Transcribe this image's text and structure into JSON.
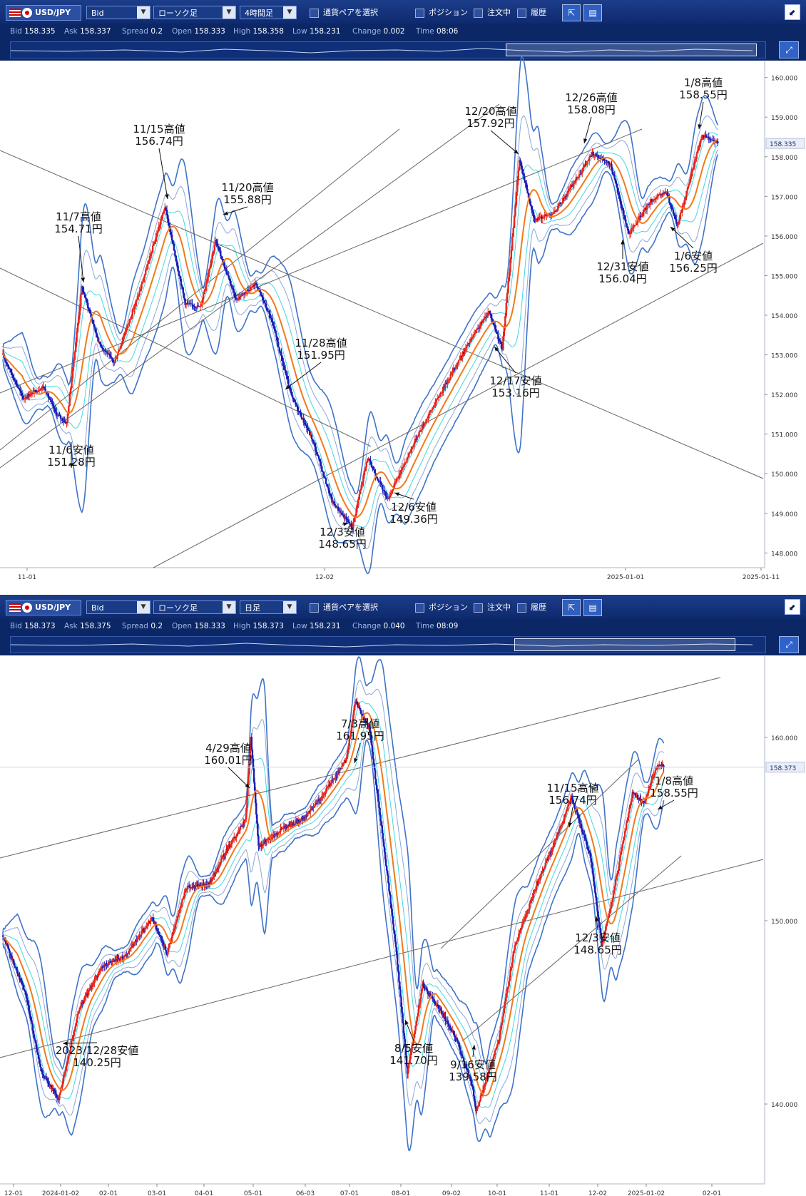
{
  "top": {
    "toolbar": {
      "pair": "USD/JPY",
      "price_type": "Bid",
      "chart_type": "ローソク足",
      "timeframe": "4時間足",
      "select_pair": "通貨ペアを選択",
      "position": "ポジション",
      "orders": "注文中",
      "history": "履歴"
    },
    "info": [
      {
        "label": "Bid",
        "value": "158.335"
      },
      {
        "label": "Ask",
        "value": "158.337"
      },
      {
        "label": "Spread",
        "value": "0.2"
      },
      {
        "label": "Open",
        "value": "158.333"
      },
      {
        "label": "High",
        "value": "158.358"
      },
      {
        "label": "Low",
        "value": "158.231"
      },
      {
        "label": "Change",
        "value": "0.002"
      },
      {
        "label": "Time",
        "value": "08:06"
      }
    ]
  },
  "bottom": {
    "toolbar": {
      "pair": "USD/JPY",
      "price_type": "Bid",
      "chart_type": "ローソク足",
      "timeframe": "日足",
      "select_pair": "通貨ペアを選択",
      "position": "ポジション",
      "orders": "注文中",
      "history": "履歴"
    },
    "info": [
      {
        "label": "Bid",
        "value": "158.373"
      },
      {
        "label": "Ask",
        "value": "158.375"
      },
      {
        "label": "Spread",
        "value": "0.2"
      },
      {
        "label": "Open",
        "value": "158.333"
      },
      {
        "label": "High",
        "value": "158.373"
      },
      {
        "label": "Low",
        "value": "158.231"
      },
      {
        "label": "Change",
        "value": "0.040"
      },
      {
        "label": "Time",
        "value": "08:09"
      }
    ]
  },
  "colors": {
    "up": "#e8231c",
    "down": "#1b1bb5",
    "ma": "#f07a1c",
    "band1": "#40d8e0",
    "band2": "#8aa6d8",
    "band3": "#3f73c8",
    "trend": "#666666"
  },
  "chart_data": [
    {
      "type": "candlestick",
      "timeframe": "4時間足",
      "ylim": [
        147.7,
        160.3
      ],
      "yticks": [
        "160.000",
        "159.000",
        "158.000",
        "157.000",
        "156.000",
        "155.000",
        "154.000",
        "153.000",
        "152.000",
        "151.000",
        "150.000",
        "149.000",
        "148.000"
      ],
      "xticks": [
        "11-01",
        "12-02",
        "2025-01-01",
        "2025-01-11"
      ],
      "current_price": "158.335",
      "path": [
        [
          0,
          153.0
        ],
        [
          20,
          151.9
        ],
        [
          40,
          152.2
        ],
        [
          53,
          151.5
        ],
        [
          63,
          151.28
        ],
        [
          78,
          154.71
        ],
        [
          95,
          153.3
        ],
        [
          110,
          152.8
        ],
        [
          135,
          154.6
        ],
        [
          160,
          156.74
        ],
        [
          180,
          154.3
        ],
        [
          195,
          154.2
        ],
        [
          210,
          155.88
        ],
        [
          230,
          154.4
        ],
        [
          250,
          154.8
        ],
        [
          265,
          153.9
        ],
        [
          285,
          151.95
        ],
        [
          305,
          150.9
        ],
        [
          325,
          149.3
        ],
        [
          345,
          148.65
        ],
        [
          360,
          150.4
        ],
        [
          380,
          149.36
        ],
        [
          410,
          151.0
        ],
        [
          440,
          152.4
        ],
        [
          460,
          153.3
        ],
        [
          480,
          154.1
        ],
        [
          493,
          153.16
        ],
        [
          510,
          157.92
        ],
        [
          525,
          156.4
        ],
        [
          545,
          156.6
        ],
        [
          570,
          157.6
        ],
        [
          582,
          158.08
        ],
        [
          600,
          157.8
        ],
        [
          618,
          156.04
        ],
        [
          640,
          156.9
        ],
        [
          655,
          157.1
        ],
        [
          666,
          156.25
        ],
        [
          690,
          158.55
        ],
        [
          706,
          158.335
        ]
      ],
      "annotations": [
        {
          "label": "11/6安値",
          "price": "151.28円"
        },
        {
          "label": "11/7高値",
          "price": "154.71円"
        },
        {
          "label": "11/15高値",
          "price": "156.74円"
        },
        {
          "label": "11/20高値",
          "price": "155.88円"
        },
        {
          "label": "11/28高値",
          "price": "151.95円"
        },
        {
          "label": "12/3安値",
          "price": "148.65円"
        },
        {
          "label": "12/6安値",
          "price": "149.36円"
        },
        {
          "label": "12/17安値",
          "price": "153.16円"
        },
        {
          "label": "12/20高値",
          "price": "157.92円"
        },
        {
          "label": "12/26高値",
          "price": "158.08円"
        },
        {
          "label": "12/31安値",
          "price": "156.04円"
        },
        {
          "label": "1/6安値",
          "price": "156.25円"
        },
        {
          "label": "1/8高値",
          "price": "158.55円"
        }
      ]
    },
    {
      "type": "candlestick",
      "timeframe": "日足",
      "ylim": [
        135.8,
        164.2
      ],
      "yticks": [
        "160.000",
        "150.000",
        "140.000"
      ],
      "xticks": [
        "12-01",
        "2024-01-02",
        "02-01",
        "03-01",
        "04-01",
        "05-01",
        "06-03",
        "07-01",
        "08-01",
        "09-02",
        "10-01",
        "11-01",
        "12-02",
        "2025-01-02",
        "02-01"
      ],
      "current_price": "158.373",
      "path": [
        [
          0,
          149.2
        ],
        [
          30,
          146.0
        ],
        [
          50,
          141.8
        ],
        [
          73,
          140.25
        ],
        [
          100,
          145.2
        ],
        [
          130,
          147.5
        ],
        [
          160,
          148.0
        ],
        [
          195,
          150.2
        ],
        [
          215,
          148.2
        ],
        [
          240,
          151.8
        ],
        [
          270,
          152.0
        ],
        [
          295,
          154.0
        ],
        [
          318,
          155.5
        ],
        [
          325,
          160.01
        ],
        [
          335,
          154.0
        ],
        [
          365,
          155.0
        ],
        [
          395,
          155.6
        ],
        [
          420,
          156.9
        ],
        [
          450,
          158.8
        ],
        [
          462,
          161.95
        ],
        [
          480,
          160.5
        ],
        [
          498,
          154.5
        ],
        [
          515,
          148.5
        ],
        [
          530,
          141.7
        ],
        [
          550,
          146.5
        ],
        [
          575,
          145.0
        ],
        [
          595,
          143.5
        ],
        [
          615,
          141.0
        ],
        [
          620,
          139.58
        ],
        [
          650,
          143.5
        ],
        [
          670,
          148.5
        ],
        [
          700,
          152.0
        ],
        [
          725,
          154.5
        ],
        [
          745,
          156.74
        ],
        [
          770,
          153.5
        ],
        [
          785,
          148.65
        ],
        [
          800,
          151.5
        ],
        [
          825,
          157.0
        ],
        [
          840,
          156.4
        ],
        [
          858,
          158.55
        ],
        [
          866,
          158.373
        ]
      ],
      "annotations": [
        {
          "label": "2023/12/28安値",
          "price": "140.25円"
        },
        {
          "label": "4/29高値",
          "price": "160.01円"
        },
        {
          "label": "7/3高値",
          "price": "161.95円"
        },
        {
          "label": "8/5安値",
          "price": "141.70円"
        },
        {
          "label": "9/16安値",
          "price": "139.58円"
        },
        {
          "label": "11/15高値",
          "price": "156.74円"
        },
        {
          "label": "12/3安値",
          "price": "148.65円"
        },
        {
          "label": "1/8高値",
          "price": "158.55円"
        }
      ]
    }
  ]
}
